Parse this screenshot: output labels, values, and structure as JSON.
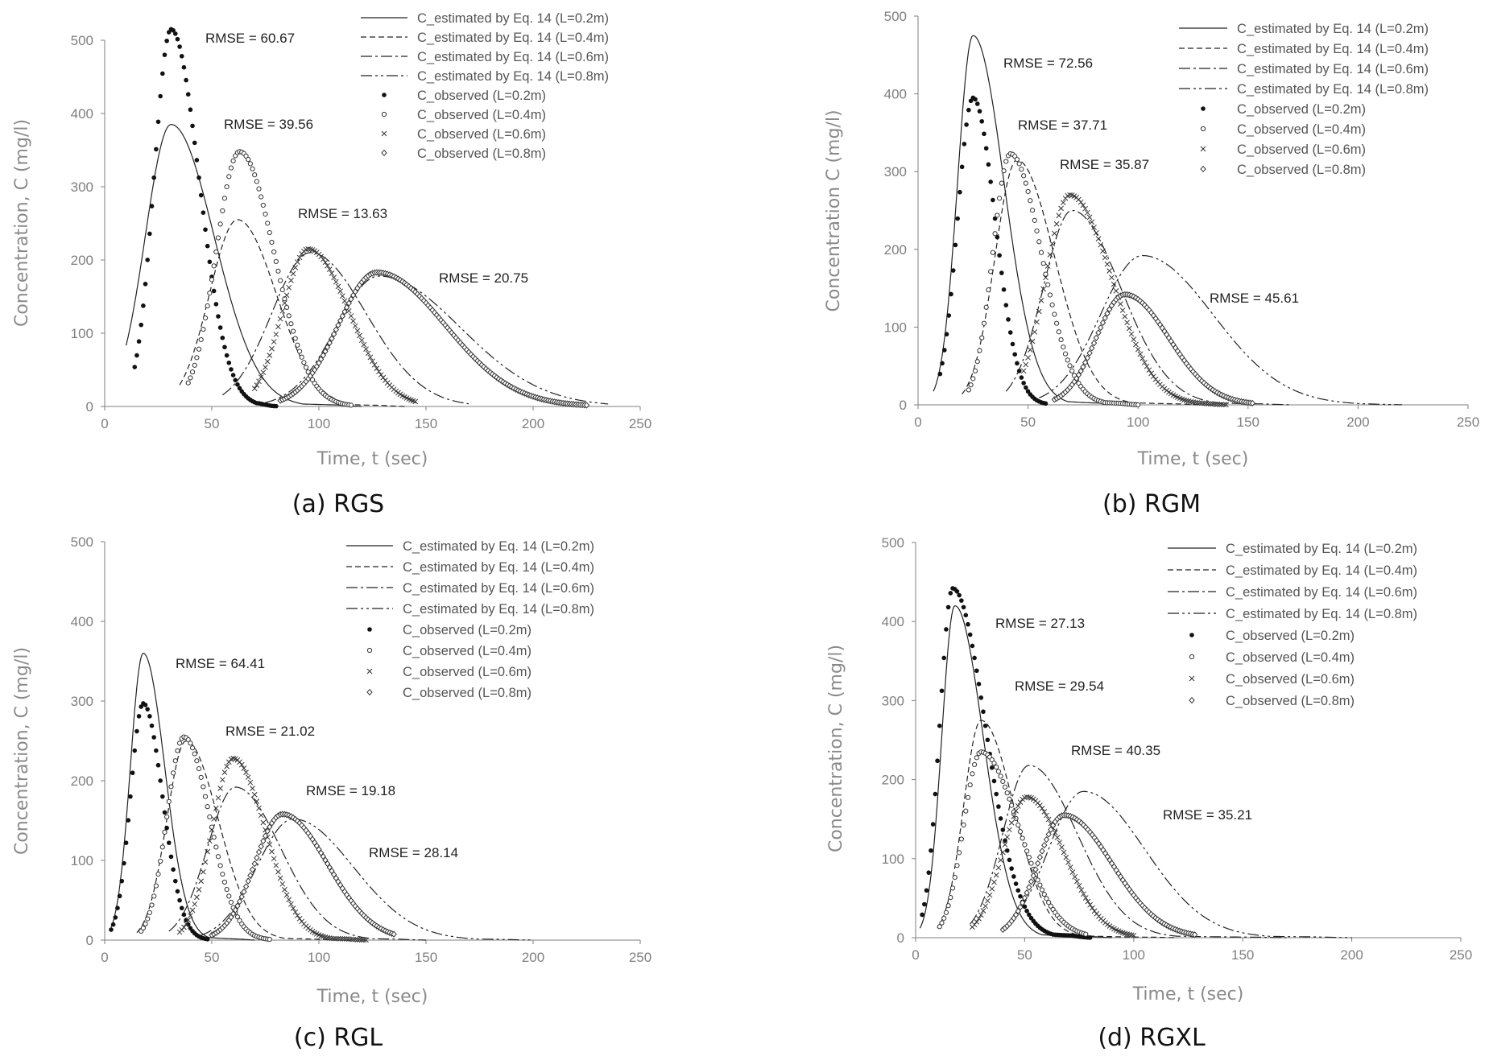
{
  "figure": {
    "captions": [
      "(a) RGS",
      "(b) RGM",
      "(c) RGL",
      "(d) RGXL"
    ]
  },
  "legend_labels": {
    "estimated": [
      "C_estimated by Eq. 14 (L=0.2m)",
      "C_estimated by Eq. 14 (L=0.4m)",
      "C_estimated by Eq. 14 (L=0.6m)",
      "C_estimated by Eq. 14 (L=0.8m)"
    ],
    "observed": [
      "C_observed (L=0.2m)",
      "C_observed (L=0.4m)",
      "C_observed (L=0.6m)",
      "C_observed (L=0.8m)"
    ]
  },
  "chart_data": [
    {
      "type": "line",
      "title": "(a) RGS",
      "xlabel": "Time, t (sec)",
      "ylabel": "Concentration, C (mg/l)",
      "xlim": [
        0,
        250
      ],
      "ylim": [
        0,
        500
      ],
      "xticks": [
        0,
        50,
        100,
        150,
        200,
        250
      ],
      "yticks": [
        0,
        100,
        200,
        300,
        400,
        500
      ],
      "rmse_labels": [
        "RMSE = 60.67",
        "RMSE = 39.56",
        "RMSE = 13.63",
        "RMSE = 20.75"
      ],
      "series": [
        {
          "name": "C_estimated by Eq. 14 (L=0.2m)",
          "start": 10,
          "peak_t": 31,
          "peak_c": 385,
          "rise": 12,
          "fall": 20,
          "end": 120
        },
        {
          "name": "C_estimated by Eq. 14 (L=0.4m)",
          "start": 35,
          "peak_t": 62,
          "peak_c": 255,
          "rise": 13,
          "fall": 18,
          "end": 140
        },
        {
          "name": "C_estimated by Eq. 14 (L=0.6m)",
          "start": 55,
          "peak_t": 96,
          "peak_c": 210,
          "rise": 18,
          "fall": 26,
          "end": 170
        },
        {
          "name": "C_estimated by Eq. 14 (L=0.8m)",
          "start": 75,
          "peak_t": 128,
          "peak_c": 178,
          "rise": 20,
          "fall": 38,
          "end": 235
        },
        {
          "name": "C_observed (L=0.2m)",
          "start": 14,
          "peak_t": 31,
          "peak_c": 515,
          "rise": 8,
          "fall": 13,
          "end": 80
        },
        {
          "name": "C_observed (L=0.4m)",
          "start": 39,
          "peak_t": 63,
          "peak_c": 348,
          "rise": 11,
          "fall": 16,
          "end": 115
        },
        {
          "name": "C_observed (L=0.6m)",
          "start": 70,
          "peak_t": 95,
          "peak_c": 215,
          "rise": 12,
          "fall": 19,
          "end": 145
        },
        {
          "name": "C_observed (L=0.8m)",
          "start": 82,
          "peak_t": 127,
          "peak_c": 183,
          "rise": 18,
          "fall": 32,
          "end": 225
        }
      ]
    },
    {
      "type": "line",
      "title": "(b) RGM",
      "xlabel": "Time, t (sec)",
      "ylabel": "Concentration C (mg/l)",
      "xlim": [
        0,
        250
      ],
      "ylim": [
        0,
        500
      ],
      "xticks": [
        0,
        50,
        100,
        150,
        200,
        250
      ],
      "yticks": [
        0,
        100,
        200,
        300,
        400,
        500
      ],
      "rmse_labels": [
        "RMSE = 72.56",
        "RMSE = 37.71",
        "RMSE = 35.87",
        "RMSE = 45.61"
      ],
      "series": [
        {
          "name": "C_estimated by Eq. 14 (L=0.2m)",
          "start": 7,
          "peak_t": 25,
          "peak_c": 475,
          "rise": 7,
          "fall": 14,
          "end": 95
        },
        {
          "name": "C_estimated by Eq. 14 (L=0.4m)",
          "start": 20,
          "peak_t": 45,
          "peak_c": 315,
          "rise": 10,
          "fall": 17,
          "end": 130
        },
        {
          "name": "C_estimated by Eq. 14 (L=0.6m)",
          "start": 40,
          "peak_t": 70,
          "peak_c": 250,
          "rise": 13,
          "fall": 22,
          "end": 170
        },
        {
          "name": "C_estimated by Eq. 14 (L=0.8m)",
          "start": 55,
          "peak_t": 102,
          "peak_c": 192,
          "rise": 19,
          "fall": 32,
          "end": 220
        },
        {
          "name": "C_observed (L=0.2m)",
          "start": 10,
          "peak_t": 25,
          "peak_c": 395,
          "rise": 7,
          "fall": 10,
          "end": 58
        },
        {
          "name": "C_observed (L=0.4m)",
          "start": 23,
          "peak_t": 42,
          "peak_c": 323,
          "rise": 8,
          "fall": 14,
          "end": 100
        },
        {
          "name": "C_observed (L=0.6m)",
          "start": 48,
          "peak_t": 69,
          "peak_c": 270,
          "rise": 11,
          "fall": 19,
          "end": 140
        },
        {
          "name": "C_observed (L=0.8m)",
          "start": 62,
          "peak_t": 94,
          "peak_c": 142,
          "rise": 13,
          "fall": 20,
          "end": 152
        }
      ]
    },
    {
      "type": "line",
      "title": "(c) RGL",
      "xlabel": "Time, t (sec)",
      "ylabel": "Concentration, C (mg/l)",
      "xlim": [
        0,
        250
      ],
      "ylim": [
        0,
        500
      ],
      "xticks": [
        0,
        50,
        100,
        150,
        200,
        250
      ],
      "yticks": [
        0,
        100,
        200,
        300,
        400,
        500
      ],
      "rmse_labels": [
        "RMSE = 64.41",
        "RMSE = 21.02",
        "RMSE = 19.18",
        "RMSE = 28.14"
      ],
      "series": [
        {
          "name": "C_estimated by Eq. 14 (L=0.2m)",
          "start": 3,
          "peak_t": 18,
          "peak_c": 360,
          "rise": 6,
          "fall": 10,
          "end": 70
        },
        {
          "name": "C_estimated by Eq. 14 (L=0.4m)",
          "start": 15,
          "peak_t": 38,
          "peak_c": 250,
          "rise": 9,
          "fall": 15,
          "end": 110
        },
        {
          "name": "C_estimated by Eq. 14 (L=0.6m)",
          "start": 30,
          "peak_t": 61,
          "peak_c": 192,
          "rise": 13,
          "fall": 21,
          "end": 150
        },
        {
          "name": "C_estimated by Eq. 14 (L=0.8m)",
          "start": 45,
          "peak_t": 88,
          "peak_c": 152,
          "rise": 17,
          "fall": 28,
          "end": 200
        },
        {
          "name": "C_observed (L=0.2m)",
          "start": 3,
          "peak_t": 18,
          "peak_c": 297,
          "rise": 6,
          "fall": 9,
          "end": 48
        },
        {
          "name": "C_observed (L=0.4m)",
          "start": 17,
          "peak_t": 37,
          "peak_c": 255,
          "rise": 8,
          "fall": 12,
          "end": 77
        },
        {
          "name": "C_observed (L=0.6m)",
          "start": 35,
          "peak_t": 60,
          "peak_c": 228,
          "rise": 10,
          "fall": 15,
          "end": 122
        },
        {
          "name": "C_observed (L=0.8m)",
          "start": 50,
          "peak_t": 83,
          "peak_c": 158,
          "rise": 13,
          "fall": 21,
          "end": 135
        }
      ]
    },
    {
      "type": "line",
      "title": "(d) RGXL",
      "xlabel": "Time, t (sec)",
      "ylabel": "Concentration, C (mg/l)",
      "xlim": [
        0,
        250
      ],
      "ylim": [
        0,
        500
      ],
      "xticks": [
        0,
        50,
        100,
        150,
        200,
        250
      ],
      "yticks": [
        0,
        100,
        200,
        300,
        400,
        500
      ],
      "rmse_labels": [
        "RMSE = 27.13",
        "RMSE = 29.54",
        "RMSE = 40.35",
        "RMSE = 35.21"
      ],
      "series": [
        {
          "name": "C_estimated by Eq. 14 (L=0.2m)",
          "start": 2,
          "peak_t": 18,
          "peak_c": 420,
          "rise": 6,
          "fall": 13,
          "end": 90
        },
        {
          "name": "C_estimated by Eq. 14 (L=0.4m)",
          "start": 10,
          "peak_t": 30,
          "peak_c": 275,
          "rise": 8,
          "fall": 15,
          "end": 120
        },
        {
          "name": "C_estimated by Eq. 14 (L=0.6m)",
          "start": 25,
          "peak_t": 52,
          "peak_c": 218,
          "rise": 12,
          "fall": 22,
          "end": 170
        },
        {
          "name": "C_estimated by Eq. 14 (L=0.8m)",
          "start": 40,
          "peak_t": 77,
          "peak_c": 185,
          "rise": 16,
          "fall": 28,
          "end": 200
        },
        {
          "name": "C_observed (L=0.2m)",
          "start": 3,
          "peak_t": 17,
          "peak_c": 442,
          "rise": 6,
          "fall": 15,
          "end": 80
        },
        {
          "name": "C_observed (L=0.4m)",
          "start": 11,
          "peak_t": 30,
          "peak_c": 235,
          "rise": 8,
          "fall": 17,
          "end": 78
        },
        {
          "name": "C_observed (L=0.6m)",
          "start": 26,
          "peak_t": 51,
          "peak_c": 178,
          "rise": 11,
          "fall": 17,
          "end": 100
        },
        {
          "name": "C_observed (L=0.8m)",
          "start": 40,
          "peak_t": 68,
          "peak_c": 155,
          "rise": 12,
          "fall": 22,
          "end": 128
        }
      ]
    }
  ]
}
